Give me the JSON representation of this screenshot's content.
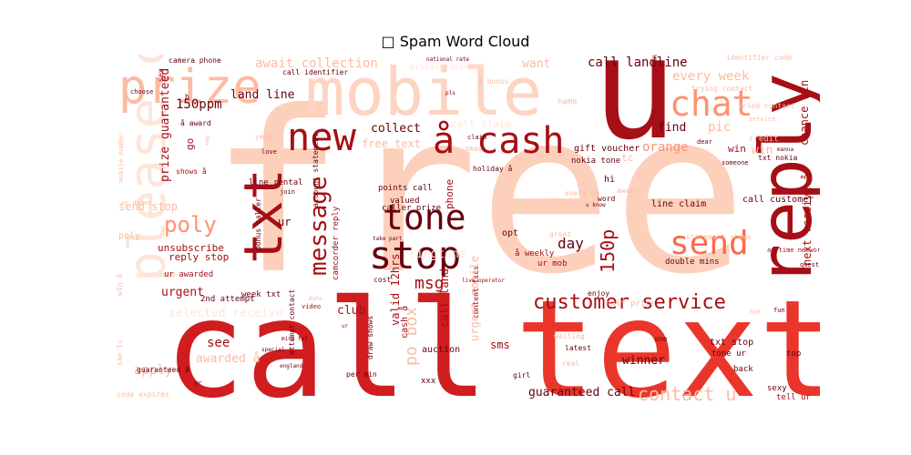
{
  "title": "□ Spam Word Cloud",
  "words": [
    {
      "text": "free",
      "color": "#fdd0bc",
      "rotate": false
    },
    {
      "text": "call",
      "color": "#d01d1f",
      "rotate": false
    },
    {
      "text": "text",
      "color": "#ea362a",
      "rotate": false
    },
    {
      "text": "u",
      "color": "#a50f15",
      "rotate": false
    },
    {
      "text": "mobile",
      "color": "#fdd4c2",
      "rotate": false
    },
    {
      "text": "reply",
      "color": "#a50f15",
      "rotate": true
    },
    {
      "text": "please call",
      "color": "#fee5d9",
      "rotate": true
    },
    {
      "text": "txt",
      "color": "#a50f15",
      "rotate": true
    },
    {
      "text": "prize",
      "color": "#fcbba1",
      "rotate": false
    },
    {
      "text": "new",
      "color": "#a50f15",
      "rotate": false
    },
    {
      "text": "å cash",
      "color": "#a50f15",
      "rotate": false
    },
    {
      "text": "chat",
      "color": "#fc9272",
      "rotate": false
    },
    {
      "text": "send",
      "color": "#fb6a4a",
      "rotate": false
    },
    {
      "text": "stop",
      "color": "#67000d",
      "rotate": false
    },
    {
      "text": "tone",
      "color": "#67000d",
      "rotate": false
    },
    {
      "text": "message",
      "color": "#a50f15",
      "rotate": true
    },
    {
      "text": "poly",
      "color": "#fc9272",
      "rotate": false
    },
    {
      "text": "customer service",
      "color": "#a50f15",
      "rotate": false
    },
    {
      "text": "contact u",
      "color": "#fcbba1",
      "rotate": false
    },
    {
      "text": "po box",
      "color": "#fcbba1",
      "rotate": true
    },
    {
      "text": "150p",
      "color": "#a50f15",
      "rotate": true
    },
    {
      "text": "call landline",
      "color": "#67000d",
      "rotate": false
    },
    {
      "text": "every week",
      "color": "#fcbba1",
      "rotate": false
    },
    {
      "text": "await collection",
      "color": "#fcbba1",
      "rotate": false
    },
    {
      "text": "land line",
      "color": "#67000d",
      "rotate": false
    },
    {
      "text": "150ppm",
      "color": "#67000d",
      "rotate": false
    },
    {
      "text": "collect",
      "color": "#67000d",
      "rotate": false
    },
    {
      "text": "free text",
      "color": "#fcbba1",
      "rotate": false
    },
    {
      "text": "prize guaranteed",
      "color": "#a50f15",
      "rotate": true
    },
    {
      "text": "want",
      "color": "#fcbba1",
      "rotate": false
    },
    {
      "text": "pic",
      "color": "#fcbba1",
      "rotate": false
    },
    {
      "text": "find",
      "color": "#67000d",
      "rotate": false
    },
    {
      "text": "orange",
      "color": "#fc9272",
      "rotate": false
    },
    {
      "text": "win",
      "color": "#fcbba1",
      "rotate": false
    },
    {
      "text": "chance win",
      "color": "#a50f15",
      "rotate": true
    },
    {
      "text": "day",
      "color": "#67000d",
      "rotate": false
    },
    {
      "text": "msg",
      "color": "#a50f15",
      "rotate": false
    },
    {
      "text": "ringtone",
      "color": "#fee5d9",
      "rotate": false
    },
    {
      "text": "urgent",
      "color": "#a50f15",
      "rotate": false
    },
    {
      "text": "club",
      "color": "#a50f15",
      "rotate": false
    },
    {
      "text": "see",
      "color": "#a50f15",
      "rotate": false
    },
    {
      "text": "apply",
      "color": "#fcbba1",
      "rotate": false
    },
    {
      "text": "awarded å",
      "color": "#fcbba1",
      "rotate": false
    },
    {
      "text": "guaranteed call",
      "color": "#67000d",
      "rotate": false
    },
    {
      "text": "winner",
      "color": "#67000d",
      "rotate": false
    },
    {
      "text": "send stop",
      "color": "#fcbba1",
      "rotate": false
    },
    {
      "text": "unsubscribe",
      "color": "#a50f15",
      "rotate": false
    },
    {
      "text": "reply stop",
      "color": "#a50f15",
      "rotate": false
    },
    {
      "text": "selected receive",
      "color": "#fee5d9",
      "rotate": false
    },
    {
      "text": "next receive å",
      "color": "#a50f15",
      "rotate": true
    },
    {
      "text": "valid 12hrs",
      "color": "#a50f15",
      "rotate": true
    },
    {
      "text": "call land",
      "color": "#a50f15",
      "rotate": true
    },
    {
      "text": "urgent mobile",
      "color": "#fcbba1",
      "rotate": true
    },
    {
      "text": "sms",
      "color": "#a50f15",
      "rotate": false
    },
    {
      "text": "txt stop",
      "color": "#67000d",
      "rotate": false
    },
    {
      "text": "call customer",
      "color": "#67000d",
      "rotate": false
    },
    {
      "text": "line claim",
      "color": "#67000d",
      "rotate": false
    },
    {
      "text": "gift voucher",
      "color": "#67000d",
      "rotate": false
    },
    {
      "text": "nokia tone",
      "color": "#67000d",
      "rotate": false
    },
    {
      "text": "call claim",
      "color": "#fee5d9",
      "rotate": false
    },
    {
      "text": "name",
      "color": "#fcbba1",
      "rotate": false
    },
    {
      "text": "week txt",
      "color": "#67000d",
      "rotate": false
    },
    {
      "text": "ur awarded",
      "color": "#a50f15",
      "rotate": false
    },
    {
      "text": "2nd attempt",
      "color": "#67000d",
      "rotate": false
    },
    {
      "text": "camera phone",
      "color": "#67000d",
      "rotate": false
    },
    {
      "text": "identifier code",
      "color": "#fcbba1",
      "rotate": false
    },
    {
      "text": "call identifier",
      "color": "#67000d",
      "rotate": false
    },
    {
      "text": "trying contact",
      "color": "#fcbba1",
      "rotate": false
    },
    {
      "text": "latest",
      "color": "#67000d",
      "rotate": false
    },
    {
      "text": "cost",
      "color": "#67000d",
      "rotate": false
    },
    {
      "text": "phone",
      "color": "#a50f15",
      "rotate": true
    },
    {
      "text": "ur",
      "color": "#67000d",
      "rotate": false
    },
    {
      "text": "hi",
      "color": "#67000d",
      "rotate": false
    },
    {
      "text": "opt",
      "color": "#67000d",
      "rotate": false
    },
    {
      "text": "tc",
      "color": "#fcbba1",
      "rotate": false
    },
    {
      "text": "go",
      "color": "#a50f15",
      "rotate": true
    },
    {
      "text": "poly",
      "color": "#fcbba1",
      "rotate": false
    },
    {
      "text": "line rental",
      "color": "#67000d",
      "rotate": false
    },
    {
      "text": "valued",
      "color": "#67000d",
      "rotate": false
    },
    {
      "text": "caller prize",
      "color": "#67000d",
      "rotate": false
    },
    {
      "text": "points call",
      "color": "#67000d",
      "rotate": false
    },
    {
      "text": "account statement",
      "color": "#67000d",
      "rotate": true
    },
    {
      "text": "bonus caller",
      "color": "#67000d",
      "rotate": true
    },
    {
      "text": "camcorder reply",
      "color": "#a50f15",
      "rotate": true
    },
    {
      "text": "cash å",
      "color": "#a50f15",
      "rotate": true
    },
    {
      "text": "auction",
      "color": "#67000d",
      "rotate": false
    },
    {
      "text": "xxx",
      "color": "#67000d",
      "rotate": false
    },
    {
      "text": "å weekly",
      "color": "#a50f15",
      "rotate": false
    },
    {
      "text": "ur mob",
      "color": "#a50f15",
      "rotate": false
    },
    {
      "text": "double mins",
      "color": "#67000d",
      "rotate": false
    },
    {
      "text": "half price",
      "color": "#fcbba1",
      "rotate": false
    },
    {
      "text": "tone ur",
      "color": "#67000d",
      "rotate": false
    },
    {
      "text": "back",
      "color": "#67000d",
      "rotate": false
    },
    {
      "text": "sexy",
      "color": "#67000d",
      "rotate": false
    },
    {
      "text": "tell ur",
      "color": "#a50f15",
      "rotate": false
    },
    {
      "text": "top",
      "color": "#67000d",
      "rotate": false
    },
    {
      "text": "credit",
      "color": "#fcbba1",
      "rotate": false
    },
    {
      "text": "txt nokia",
      "color": "#67000d",
      "rotate": false
    },
    {
      "text": "win",
      "color": "#a50f15",
      "rotate": false
    },
    {
      "text": "å award",
      "color": "#67000d",
      "rotate": false
    },
    {
      "text": "guaranteed å",
      "color": "#67000d",
      "rotate": false
    },
    {
      "text": "attempt contact",
      "color": "#67000d",
      "rotate": true
    },
    {
      "text": "draw shows",
      "color": "#67000d",
      "rotate": true
    },
    {
      "text": "per min",
      "color": "#67000d",
      "rotate": false
    },
    {
      "text": "shows å",
      "color": "#a50f15",
      "rotate": false
    },
    {
      "text": "mobile number",
      "color": "#fcbba1",
      "rotate": true
    },
    {
      "text": "code expires",
      "color": "#fcbba1",
      "rotate": false
    },
    {
      "text": "sae tc",
      "color": "#fcbba1",
      "rotate": true
    },
    {
      "text": "win å",
      "color": "#fcbba1",
      "rotate": true
    },
    {
      "text": "ur dates",
      "color": "#fcbba1",
      "rotate": false
    },
    {
      "text": "holiday å",
      "color": "#67000d",
      "rotate": false
    },
    {
      "text": "xmas",
      "color": "#fcbba1",
      "rotate": false
    },
    {
      "text": "award",
      "color": "#fcbba1",
      "rotate": false
    },
    {
      "text": "word",
      "color": "#67000d",
      "rotate": false
    },
    {
      "text": "great",
      "color": "#fcbba1",
      "rotate": false
    },
    {
      "text": "every wk",
      "color": "#fcbba1",
      "rotate": false
    },
    {
      "text": "enjoy",
      "color": "#67000d",
      "rotate": false
    },
    {
      "text": "waiting",
      "color": "#fcbba1",
      "rotate": false
    },
    {
      "text": "real",
      "color": "#fcbba1",
      "rotate": false
    },
    {
      "text": "content tscs",
      "color": "#a50f15",
      "rotate": true
    },
    {
      "text": "girl",
      "color": "#67000d",
      "rotate": false
    },
    {
      "text": "statement shows",
      "color": "#fcbba1",
      "rotate": false
    },
    {
      "text": "anytime network",
      "color": "#a50f15",
      "rotate": false
    },
    {
      "text": "question",
      "color": "#67000d",
      "rotate": false
    },
    {
      "text": "urgent trying",
      "color": "#a50f15",
      "rotate": true
    },
    {
      "text": "tried contact",
      "color": "#fcbba1",
      "rotate": false
    },
    {
      "text": "service",
      "color": "#fcbba1",
      "rotate": false
    },
    {
      "text": "dear",
      "color": "#67000d",
      "rotate": false
    },
    {
      "text": "someone",
      "color": "#67000d",
      "rotate": false
    },
    {
      "text": "year",
      "color": "#fcbba1",
      "rotate": false
    },
    {
      "text": "love",
      "color": "#67000d",
      "rotate": false
    },
    {
      "text": "choose",
      "color": "#67000d",
      "rotate": false
    },
    {
      "text": "sex",
      "color": "#a50f15",
      "rotate": true
    },
    {
      "text": "private account",
      "color": "#fee5d9",
      "rotate": false
    },
    {
      "text": "national rate",
      "color": "#67000d",
      "rotate": false
    },
    {
      "text": "å bonus",
      "color": "#fcbba1",
      "rotate": false
    },
    {
      "text": "claim",
      "color": "#67000d",
      "rotate": false
    },
    {
      "text": "join",
      "color": "#67000d",
      "rotate": false
    },
    {
      "text": "take part",
      "color": "#67000d",
      "rotate": false
    },
    {
      "text": "yr",
      "color": "#67000d",
      "rotate": false
    },
    {
      "text": "england",
      "color": "#67000d",
      "rotate": false
    },
    {
      "text": "one",
      "color": "#67000d",
      "rotate": false
    },
    {
      "text": "live operator",
      "color": "#a50f15",
      "rotate": false
    },
    {
      "text": "video",
      "color": "#a50f15",
      "rotate": false
    },
    {
      "text": "ur ",
      "color": "#a50f15",
      "rotate": false
    },
    {
      "text": "mins txt",
      "color": "#67000d",
      "rotate": false
    },
    {
      "text": "special",
      "color": "#67000d",
      "rotate": false
    },
    {
      "text": "map",
      "color": "#fcbba1",
      "rotate": true
    },
    {
      "text": "hot",
      "color": "#fcbba1",
      "rotate": false
    },
    {
      "text": "manna",
      "color": "#67000d",
      "rotate": false
    },
    {
      "text": "b",
      "color": "#67000d",
      "rotate": false
    },
    {
      "text": "pls",
      "color": "#67000d",
      "rotate": false
    },
    {
      "text": "u know",
      "color": "#67000d",
      "rotate": false
    },
    {
      "text": "date",
      "color": "#fcbba1",
      "rotate": false
    },
    {
      "text": "fun",
      "color": "#67000d",
      "rotate": false
    }
  ]
}
